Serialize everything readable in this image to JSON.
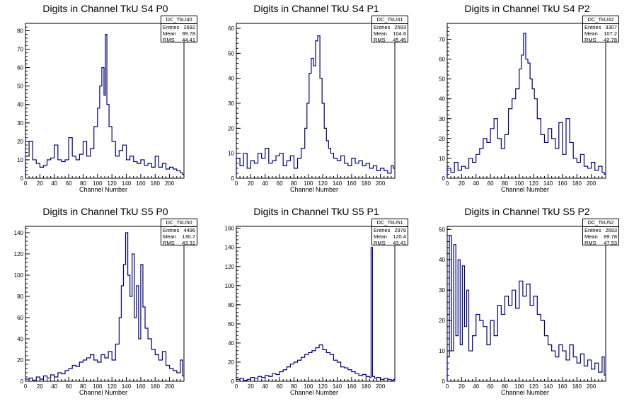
{
  "chart_data": [
    {
      "type": "histogram",
      "title": "Digits in Channel TkU S4 P0",
      "xlabel": "Channel Number",
      "xlim": [
        0,
        220
      ],
      "ylim": [
        0,
        84
      ],
      "xticks": [
        0,
        20,
        40,
        60,
        80,
        100,
        120,
        140,
        160,
        180,
        200
      ],
      "yticks": [
        0,
        10,
        20,
        30,
        40,
        50,
        60,
        70,
        80
      ],
      "stats": {
        "name": "DC_TkU40",
        "labels": [
          "Entries",
          "Mean",
          "RMS"
        ],
        "values": [
          "2692",
          "99.78",
          "44.41"
        ]
      },
      "series": [
        {
          "x": [
            0,
            5,
            10,
            15,
            20,
            25,
            30,
            35,
            40,
            45,
            50,
            55,
            60,
            65,
            70,
            75,
            80,
            85,
            90,
            95,
            100,
            103,
            106,
            109,
            111,
            113,
            116,
            120,
            125,
            130,
            135,
            140,
            145,
            150,
            155,
            160,
            165,
            170,
            175,
            180,
            185,
            190,
            195,
            200,
            205,
            210,
            215,
            218
          ],
          "y": [
            12,
            20,
            10,
            8,
            6,
            7,
            10,
            11,
            18,
            10,
            9,
            10,
            22,
            12,
            10,
            13,
            20,
            12,
            16,
            28,
            38,
            50,
            60,
            45,
            78,
            40,
            28,
            20,
            12,
            15,
            18,
            10,
            12,
            9,
            8,
            10,
            7,
            8,
            6,
            12,
            6,
            8,
            5,
            6,
            5,
            4,
            3,
            2
          ]
        }
      ]
    },
    {
      "type": "histogram",
      "title": "Digits in Channel TkU S4 P1",
      "xlabel": "Channel Number",
      "xlim": [
        0,
        220
      ],
      "ylim": [
        0,
        62
      ],
      "xticks": [
        0,
        20,
        40,
        60,
        80,
        100,
        120,
        140,
        160,
        180,
        200
      ],
      "yticks": [
        0,
        10,
        20,
        30,
        40,
        50,
        60
      ],
      "stats": {
        "name": "DC_TkU41",
        "labels": [
          "Entries",
          "Mean",
          "RMS"
        ],
        "values": [
          "2593",
          "104.6",
          "45.45"
        ]
      },
      "series": [
        {
          "x": [
            0,
            5,
            10,
            15,
            20,
            25,
            30,
            35,
            40,
            45,
            50,
            55,
            60,
            65,
            70,
            75,
            80,
            85,
            90,
            95,
            98,
            101,
            104,
            107,
            110,
            113,
            116,
            119,
            122,
            125,
            128,
            131,
            135,
            140,
            145,
            150,
            155,
            160,
            165,
            170,
            175,
            180,
            185,
            190,
            195,
            200,
            205,
            210,
            215,
            218
          ],
          "y": [
            8,
            5,
            10,
            4,
            7,
            6,
            10,
            8,
            12,
            6,
            7,
            9,
            10,
            5,
            7,
            9,
            4,
            8,
            12,
            20,
            30,
            42,
            48,
            45,
            55,
            57,
            40,
            30,
            20,
            15,
            12,
            10,
            8,
            7,
            9,
            6,
            5,
            8,
            6,
            7,
            5,
            6,
            4,
            5,
            3,
            4,
            3,
            2,
            5,
            4
          ]
        }
      ]
    },
    {
      "type": "histogram",
      "title": "Digits in Channel TkU S4 P2",
      "xlabel": "Channel Number",
      "xlim": [
        0,
        220
      ],
      "ylim": [
        0,
        78
      ],
      "xticks": [
        0,
        20,
        40,
        60,
        80,
        100,
        120,
        140,
        160,
        180,
        200
      ],
      "yticks": [
        0,
        10,
        20,
        30,
        40,
        50,
        60,
        70
      ],
      "stats": {
        "name": "DC_TkU42",
        "labels": [
          "Entries",
          "Mean",
          "RMS"
        ],
        "values": [
          "3307",
          "107.2",
          "42.78"
        ]
      },
      "series": [
        {
          "x": [
            0,
            5,
            10,
            15,
            20,
            25,
            30,
            35,
            40,
            45,
            50,
            55,
            60,
            65,
            70,
            75,
            80,
            85,
            90,
            95,
            100,
            103,
            106,
            109,
            112,
            115,
            118,
            121,
            125,
            130,
            135,
            140,
            145,
            150,
            155,
            160,
            165,
            170,
            175,
            180,
            185,
            190,
            195,
            200,
            205,
            210,
            215,
            218
          ],
          "y": [
            5,
            3,
            8,
            4,
            6,
            5,
            10,
            8,
            12,
            15,
            20,
            18,
            25,
            30,
            20,
            15,
            22,
            35,
            40,
            45,
            55,
            62,
            73,
            60,
            58,
            50,
            45,
            40,
            30,
            22,
            18,
            25,
            20,
            15,
            28,
            12,
            30,
            18,
            10,
            8,
            12,
            6,
            5,
            8,
            4,
            6,
            3,
            2
          ]
        }
      ]
    },
    {
      "type": "histogram",
      "title": "Digits in Channel TkU S5 P0",
      "xlabel": "Channel Number",
      "xlim": [
        0,
        220
      ],
      "ylim": [
        0,
        146
      ],
      "xticks": [
        0,
        20,
        40,
        60,
        80,
        100,
        120,
        140,
        160,
        180,
        200
      ],
      "yticks": [
        0,
        20,
        40,
        60,
        80,
        100,
        120,
        140
      ],
      "stats": {
        "name": "DC_TkU50",
        "labels": [
          "Entries",
          "Mean",
          "RMS"
        ],
        "values": [
          "4496",
          "130.7",
          "43.31"
        ]
      },
      "series": [
        {
          "x": [
            0,
            5,
            10,
            15,
            20,
            25,
            30,
            35,
            40,
            45,
            50,
            55,
            60,
            65,
            70,
            75,
            80,
            85,
            90,
            95,
            100,
            105,
            110,
            115,
            120,
            125,
            130,
            133,
            136,
            139,
            142,
            145,
            148,
            151,
            154,
            157,
            160,
            163,
            166,
            170,
            175,
            180,
            185,
            190,
            195,
            200,
            205,
            210,
            215,
            218
          ],
          "y": [
            2,
            3,
            1,
            4,
            2,
            5,
            3,
            6,
            4,
            8,
            7,
            10,
            12,
            15,
            14,
            18,
            20,
            22,
            25,
            20,
            18,
            25,
            22,
            28,
            20,
            35,
            60,
            90,
            110,
            140,
            100,
            80,
            120,
            60,
            90,
            40,
            110,
            70,
            50,
            40,
            30,
            25,
            20,
            28,
            15,
            12,
            10,
            8,
            20,
            5
          ]
        }
      ]
    },
    {
      "type": "histogram",
      "title": "Digits in Channel TkU S5 P1",
      "xlabel": "Channel Number",
      "xlim": [
        0,
        220
      ],
      "ylim": [
        0,
        162
      ],
      "xticks": [
        0,
        20,
        40,
        60,
        80,
        100,
        120,
        140,
        160,
        180,
        200
      ],
      "yticks": [
        0,
        20,
        40,
        60,
        80,
        100,
        120,
        140,
        160
      ],
      "stats": {
        "name": "DC_TkU51",
        "labels": [
          "Entries",
          "Mean",
          "RMS"
        ],
        "values": [
          "2976",
          "120.4",
          "43.41"
        ]
      },
      "series": [
        {
          "x": [
            0,
            5,
            10,
            15,
            20,
            25,
            30,
            35,
            40,
            45,
            50,
            55,
            60,
            65,
            70,
            75,
            80,
            85,
            90,
            95,
            100,
            105,
            110,
            115,
            120,
            125,
            130,
            135,
            140,
            145,
            150,
            155,
            160,
            165,
            170,
            175,
            180,
            185,
            187,
            189,
            192,
            195,
            200,
            205,
            210,
            215,
            218
          ],
          "y": [
            2,
            3,
            1,
            2,
            4,
            3,
            5,
            4,
            6,
            5,
            8,
            7,
            10,
            12,
            15,
            18,
            20,
            22,
            25,
            28,
            30,
            32,
            35,
            38,
            33,
            30,
            28,
            22,
            20,
            15,
            14,
            12,
            10,
            8,
            6,
            7,
            5,
            4,
            140,
            5,
            3,
            4,
            2,
            3,
            2,
            1,
            2
          ]
        }
      ]
    },
    {
      "type": "histogram",
      "title": "Digits in Channel TkU S5 P2",
      "xlabel": "Channel Number",
      "xlim": [
        0,
        220
      ],
      "ylim": [
        0,
        51
      ],
      "xticks": [
        0,
        20,
        40,
        60,
        80,
        100,
        120,
        140,
        160,
        180,
        200
      ],
      "yticks": [
        0,
        10,
        20,
        30,
        40,
        50
      ],
      "stats": {
        "name": "DC_TkU52",
        "labels": [
          "Entries",
          "Mean",
          "RMS"
        ],
        "values": [
          "2693",
          "89.78",
          "47.93"
        ]
      },
      "series": [
        {
          "x": [
            0,
            3,
            6,
            9,
            12,
            15,
            18,
            21,
            24,
            27,
            30,
            35,
            40,
            45,
            50,
            55,
            60,
            65,
            70,
            75,
            80,
            85,
            90,
            95,
            100,
            105,
            110,
            115,
            120,
            125,
            130,
            135,
            140,
            145,
            150,
            155,
            160,
            165,
            170,
            175,
            180,
            185,
            190,
            195,
            200,
            205,
            210,
            215,
            218
          ],
          "y": [
            8,
            48,
            10,
            45,
            15,
            40,
            12,
            38,
            18,
            30,
            10,
            15,
            22,
            20,
            18,
            12,
            20,
            15,
            25,
            22,
            28,
            25,
            30,
            24,
            33,
            28,
            32,
            25,
            28,
            22,
            20,
            15,
            12,
            10,
            8,
            12,
            10,
            7,
            12,
            8,
            6,
            9,
            5,
            7,
            4,
            6,
            3,
            8,
            2
          ]
        }
      ]
    }
  ]
}
